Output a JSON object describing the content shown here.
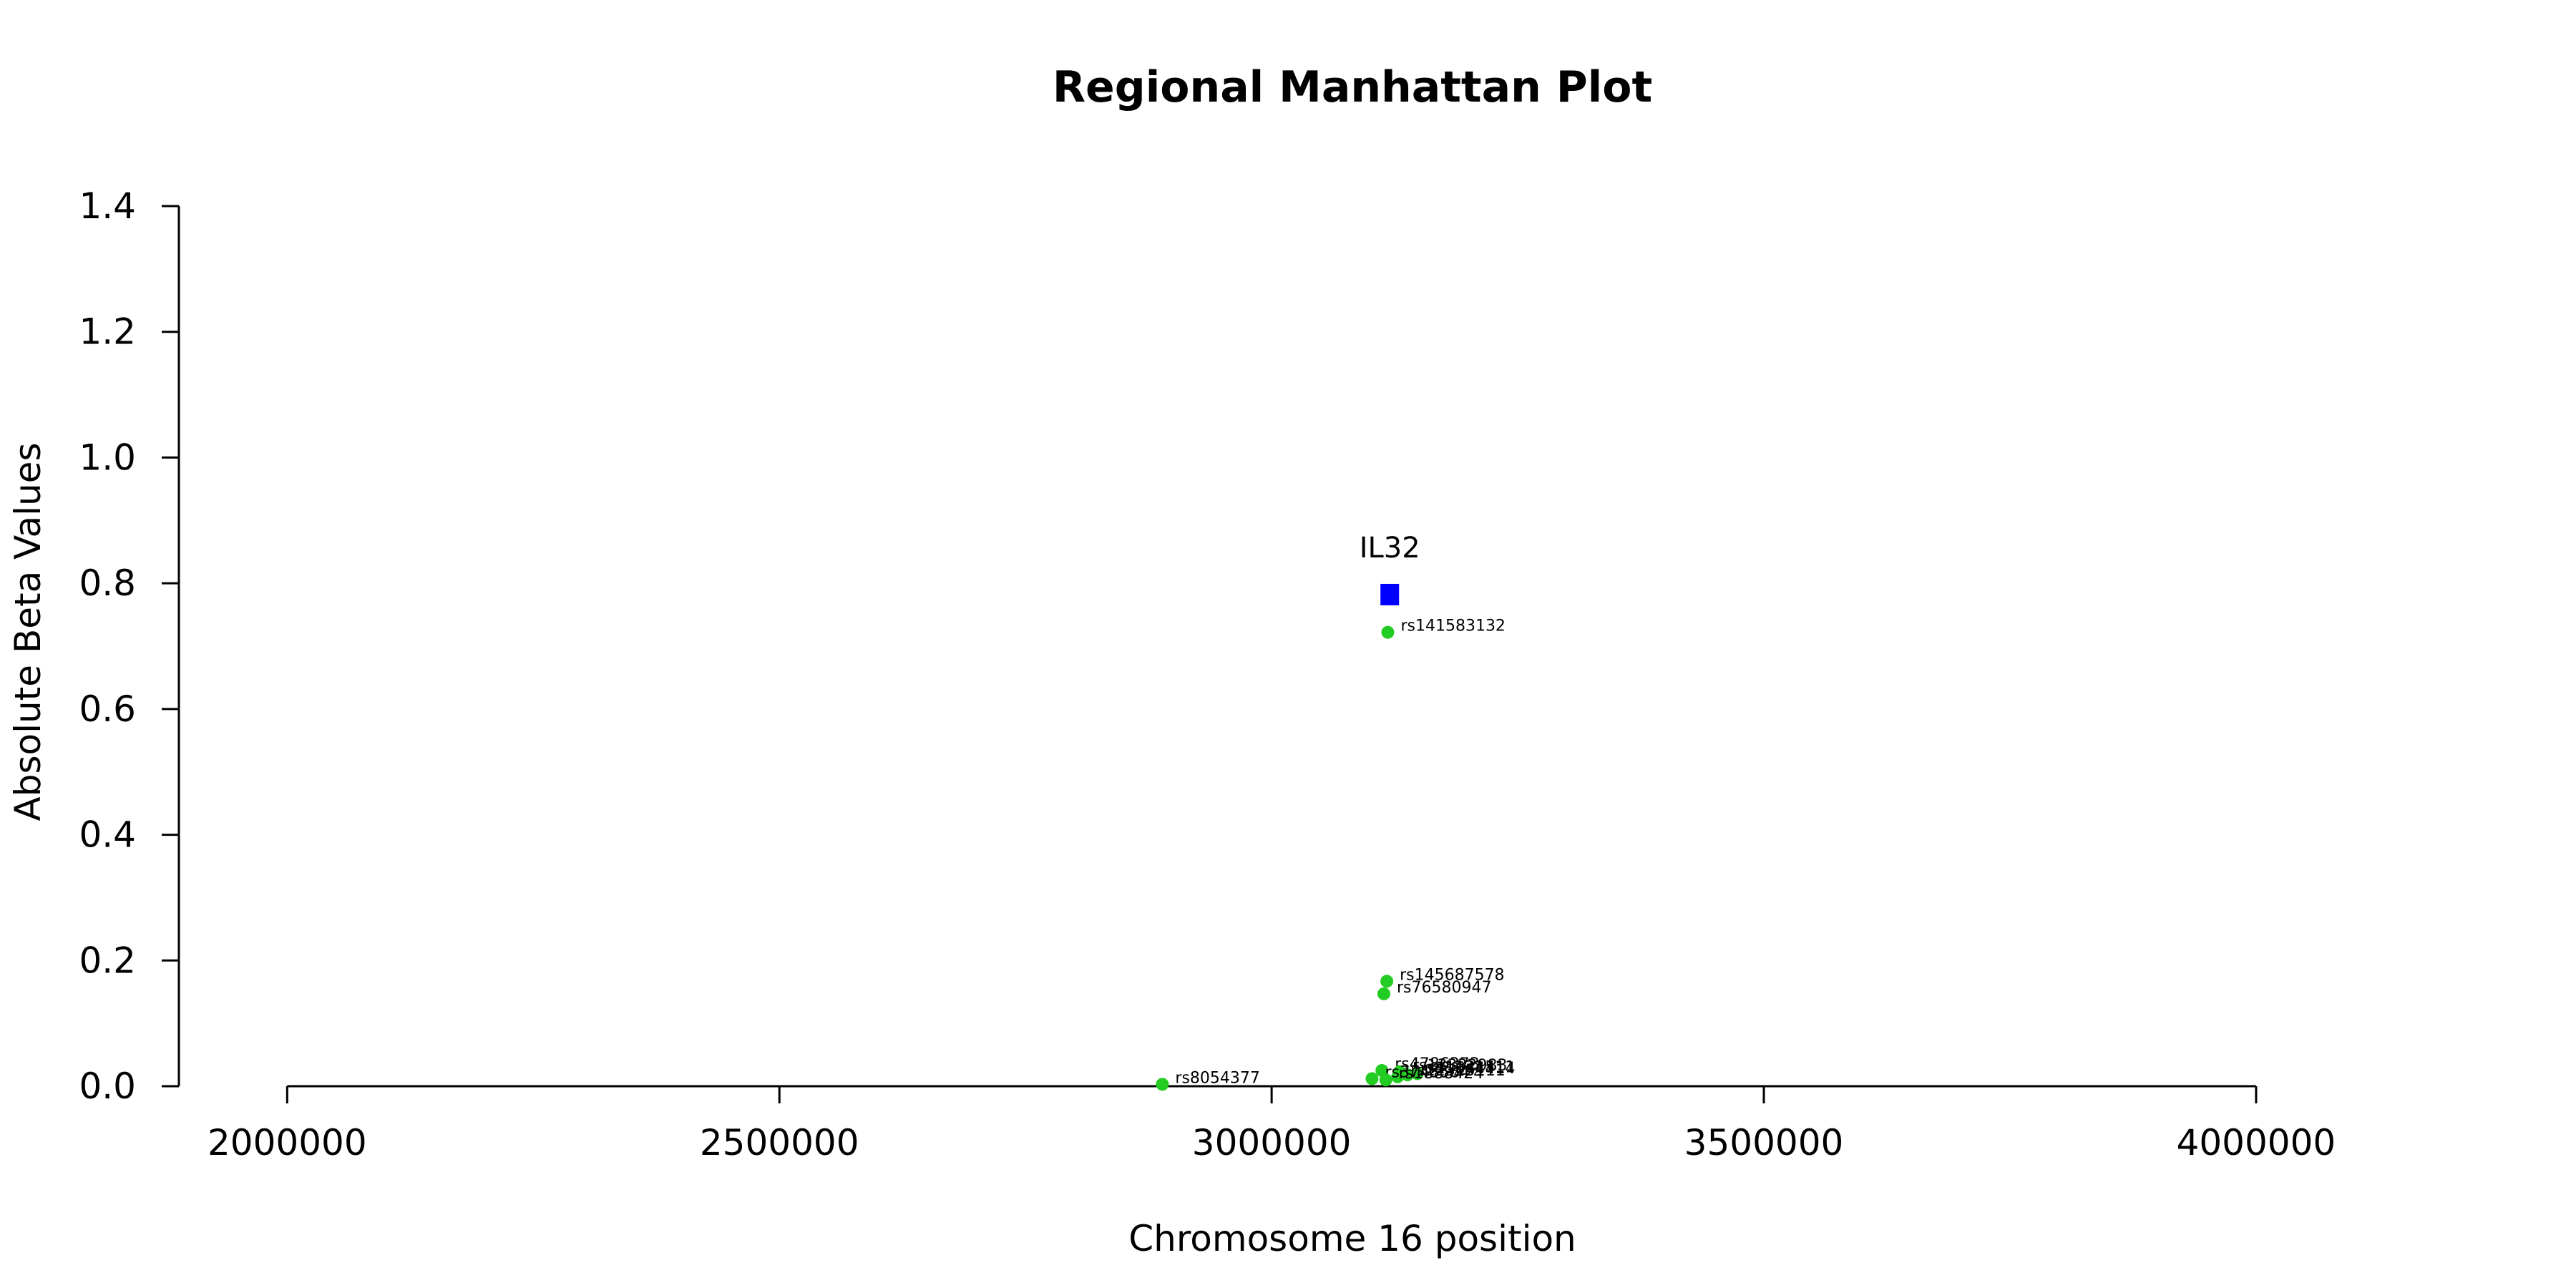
{
  "chart_data": {
    "type": "scatter",
    "title": "Regional Manhattan Plot",
    "xlabel": "Chromosome 16 position",
    "ylabel": "Absolute Beta Values",
    "xlim": [
      1890000,
      4120000
    ],
    "ylim": [
      0,
      1.4
    ],
    "xticks": [
      2000000,
      2500000,
      3000000,
      3500000,
      4000000
    ],
    "yticks": [
      0.0,
      0.2,
      0.4,
      0.6,
      0.8,
      1.0,
      1.2,
      1.4
    ],
    "xtick_labels": [
      "2000000",
      "2500000",
      "3000000",
      "3500000",
      "4000000"
    ],
    "ytick_labels": [
      "0.0",
      "0.2",
      "0.4",
      "0.6",
      "0.8",
      "1.0",
      "1.2",
      "1.4"
    ],
    "grid": false,
    "gene": {
      "name": "IL32",
      "x": 3120000,
      "y": 0.782,
      "color": "#0000ff",
      "marker": "square"
    },
    "snp_color": "#22cc22",
    "snps": [
      {
        "label": "rs141583132",
        "x": 3118000,
        "y": 0.722
      },
      {
        "label": "rs145687578",
        "x": 3117000,
        "y": 0.167
      },
      {
        "label": "rs76580947",
        "x": 3114000,
        "y": 0.147
      },
      {
        "label": "rs4786373",
        "x": 3112000,
        "y": 0.025
      },
      {
        "label": "rs13332983",
        "x": 3130000,
        "y": 0.023
      },
      {
        "label": "rs1131511",
        "x": 3148000,
        "y": 0.02
      },
      {
        "label": "rs11644414",
        "x": 3138000,
        "y": 0.018
      },
      {
        "label": "rs12325111",
        "x": 3128000,
        "y": 0.015
      },
      {
        "label": "rs3743564",
        "x": 3102000,
        "y": 0.012
      },
      {
        "label": "rs1888424",
        "x": 3116000,
        "y": 0.01
      },
      {
        "label": "rs8054377",
        "x": 2889000,
        "y": 0.003
      }
    ]
  }
}
